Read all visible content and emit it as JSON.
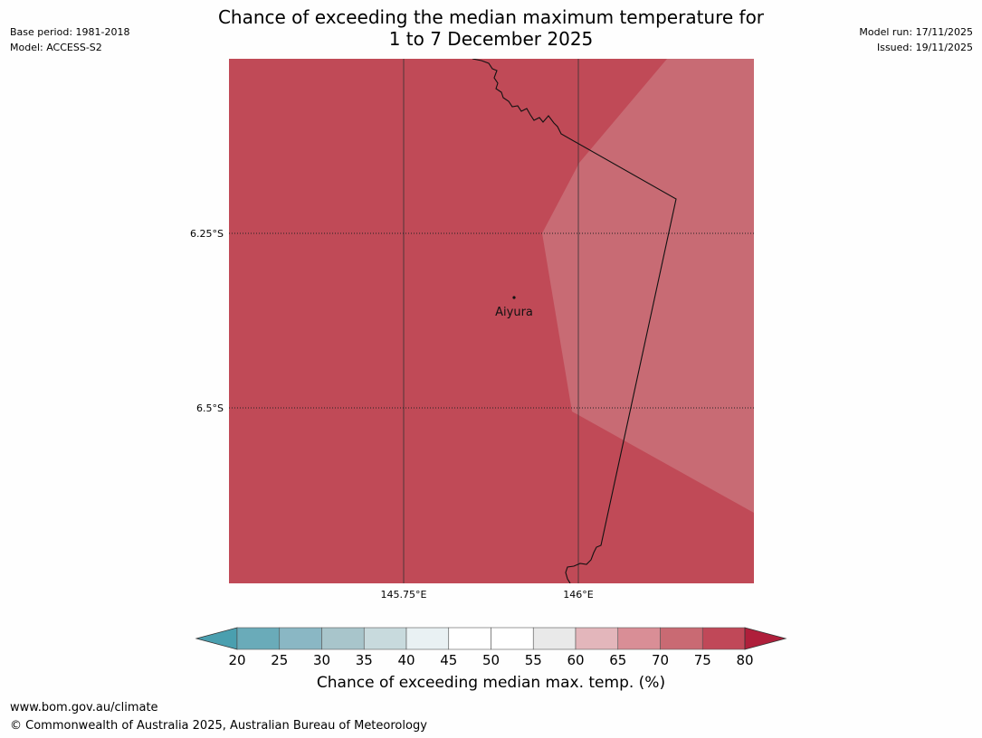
{
  "title_line1": "Chance of exceeding the median maximum temperature for",
  "title_line2": "1 to 7 December 2025",
  "meta_left": {
    "base_period": "Base period: 1981-2018",
    "model": "Model: ACCESS-S2"
  },
  "meta_right": {
    "model_run": "Model run: 17/11/2025",
    "issued": "Issued: 19/11/2025"
  },
  "map": {
    "lat_labels": [
      "6.25°S",
      "6.5°S"
    ],
    "lon_labels": [
      "145.75°E",
      "146°E"
    ],
    "place": {
      "name": "Aiyura"
    },
    "regions": [
      {
        "name": "70-75",
        "color": "#c86b74"
      },
      {
        "name": "75-80",
        "color": "#c04a57"
      }
    ]
  },
  "colorbar": {
    "ticks": [
      "20",
      "25",
      "30",
      "35",
      "40",
      "45",
      "50",
      "55",
      "60",
      "65",
      "70",
      "75",
      "80"
    ],
    "under_color": "#4a9faf",
    "over_color": "#af1f3b",
    "bin_colors": [
      "#6aabb9",
      "#8ab7c4",
      "#a8c5cb",
      "#c8dadd",
      "#e9f1f3",
      "#ffffff",
      "#ffffff",
      "#e9e9e9",
      "#e3b6bb",
      "#d98e96",
      "#c96a73",
      "#c04858"
    ],
    "label": "Chance of exceeding median max. temp. (%)"
  },
  "footer": {
    "url": "www.bom.gov.au/climate",
    "copyright": "© Commonwealth of Australia 2025, Australian Bureau of Meteorology"
  }
}
